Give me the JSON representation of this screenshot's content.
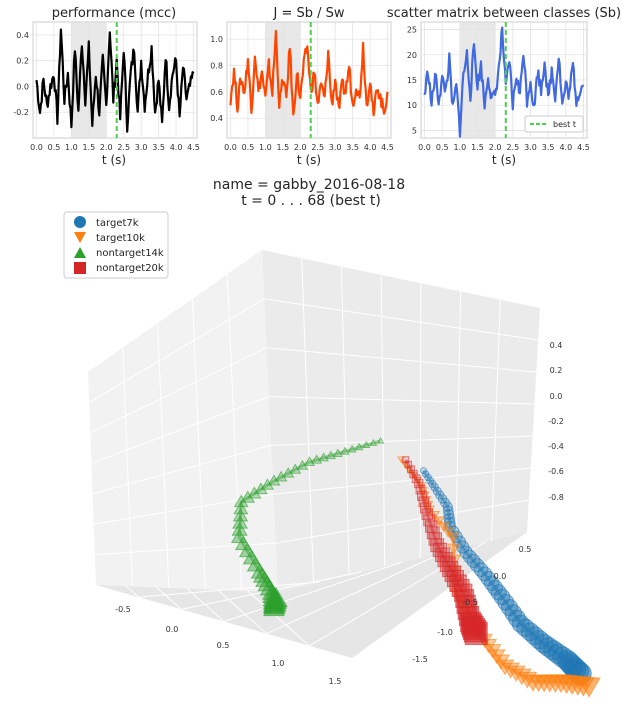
{
  "header": {
    "line1": "name = gabby_2016-08-18",
    "line2": "t = 0 . . .  68 (best t)"
  },
  "colors": {
    "perf": "#000000",
    "ratio": "#ff4500",
    "scatter": "#4169e1",
    "best_t": "#4cd14c",
    "shade": "#d9d9d9",
    "target7k": "#1f77b4",
    "target10k": "#ff7f0e",
    "nontarget14k": "#2ca02c",
    "nontarget20k": "#d62728"
  },
  "chart_data": [
    {
      "type": "line",
      "title": "performance (mcc)",
      "xlabel": "t (s)",
      "xlim": [
        -0.1,
        4.6
      ],
      "ylim": [
        -0.4,
        0.5
      ],
      "xticks": [
        "0.0",
        "0.5",
        "1.0",
        "1.5",
        "2.0",
        "2.5",
        "3.0",
        "3.5",
        "4.0",
        "4.5"
      ],
      "yticks": [
        "-0.2",
        "0.0",
        "0.2",
        "0.4"
      ],
      "shade_x": [
        1.0,
        2.0
      ],
      "best_t": 2.3,
      "base": 0.0,
      "amp": 0.2,
      "seed": 3,
      "x": [
        0,
        0.1,
        0.2,
        0.3,
        0.4,
        0.5,
        0.6,
        0.7,
        0.8,
        0.9,
        1.0,
        1.1,
        1.2,
        1.3,
        1.4,
        1.5,
        1.6,
        1.7,
        1.8,
        1.9,
        2.0,
        2.1,
        2.2,
        2.3,
        2.4,
        2.5,
        2.6,
        2.7,
        2.8,
        2.9,
        3.0,
        3.1,
        3.2,
        3.3,
        3.4,
        3.5,
        3.6,
        3.7,
        3.8,
        3.9,
        4.0,
        4.1,
        4.2,
        4.3,
        4.4,
        4.5
      ],
      "y": [
        0.05,
        -0.2,
        0.05,
        -0.15,
        0.0,
        0.1,
        -0.25,
        0.45,
        -0.1,
        0.1,
        -0.3,
        0.3,
        -0.2,
        0.35,
        -0.1,
        0.3,
        -0.3,
        0.1,
        -0.2,
        0.2,
        -0.15,
        0.45,
        -0.1,
        0.2,
        -0.25,
        0.3,
        -0.3,
        0.1,
        0.3,
        -0.2,
        0.2,
        -0.15,
        0.1,
        0.3,
        -0.2,
        0.05,
        -0.3,
        0.25,
        -0.15,
        0.1,
        0.2,
        -0.25,
        0.15,
        -0.1,
        0.0,
        0.1
      ]
    },
    {
      "type": "line",
      "title": "J = Sb / Sw",
      "xlabel": "t (s)",
      "xlim": [
        -0.1,
        4.6
      ],
      "ylim": [
        0.25,
        1.13
      ],
      "xticks": [
        "0.0",
        "0.5",
        "1.0",
        "1.5",
        "2.0",
        "2.5",
        "3.0",
        "3.5",
        "4.0",
        "4.5"
      ],
      "yticks": [
        "0.4",
        "0.6",
        "0.8",
        "1.0"
      ],
      "shade_x": [
        1.0,
        2.0
      ],
      "best_t": 2.3,
      "x": [
        0,
        0.1,
        0.2,
        0.3,
        0.4,
        0.5,
        0.6,
        0.7,
        0.8,
        0.9,
        1.0,
        1.1,
        1.2,
        1.3,
        1.4,
        1.5,
        1.6,
        1.7,
        1.8,
        1.9,
        2.0,
        2.1,
        2.2,
        2.3,
        2.4,
        2.5,
        2.6,
        2.7,
        2.8,
        2.9,
        3.0,
        3.1,
        3.2,
        3.3,
        3.4,
        3.5,
        3.6,
        3.7,
        3.8,
        3.9,
        4.0,
        4.1,
        4.2,
        4.3,
        4.4,
        4.5
      ],
      "y": [
        0.55,
        0.75,
        0.5,
        0.7,
        0.6,
        0.85,
        0.45,
        0.9,
        0.6,
        0.75,
        0.55,
        0.8,
        0.6,
        1.05,
        0.5,
        0.7,
        0.55,
        0.95,
        0.4,
        0.75,
        0.55,
        0.8,
        0.95,
        0.6,
        0.75,
        0.5,
        0.65,
        0.55,
        0.9,
        0.5,
        0.7,
        0.45,
        0.65,
        0.6,
        0.8,
        0.5,
        0.65,
        0.55,
        0.95,
        0.5,
        0.7,
        0.4,
        0.65,
        0.55,
        0.45,
        0.6
      ]
    },
    {
      "type": "line",
      "title": "scatter matrix between classes (Sb)",
      "xlabel": "t (s)",
      "xlim": [
        -0.1,
        4.6
      ],
      "ylim": [
        3.5,
        26.5
      ],
      "xticks": [
        "0.0",
        "0.5",
        "1.0",
        "1.5",
        "2.0",
        "2.5",
        "3.0",
        "3.5",
        "4.0",
        "4.5"
      ],
      "yticks": [
        "5",
        "10",
        "15",
        "20",
        "25"
      ],
      "shade_x": [
        1.0,
        2.0
      ],
      "best_t": 2.3,
      "legend": [
        "best t"
      ],
      "legend_loc": "lower right",
      "x": [
        0,
        0.1,
        0.2,
        0.3,
        0.4,
        0.5,
        0.6,
        0.7,
        0.8,
        0.9,
        1.0,
        1.1,
        1.2,
        1.3,
        1.4,
        1.5,
        1.6,
        1.7,
        1.8,
        1.9,
        2.0,
        2.1,
        2.2,
        2.3,
        2.4,
        2.5,
        2.6,
        2.7,
        2.8,
        2.9,
        3.0,
        3.1,
        3.2,
        3.3,
        3.4,
        3.5,
        3.6,
        3.7,
        3.8,
        3.9,
        4.0,
        4.1,
        4.2,
        4.3,
        4.4,
        4.5
      ],
      "y": [
        12,
        17,
        10,
        16,
        11,
        15,
        13,
        19,
        9,
        14,
        5,
        16,
        20,
        12,
        22,
        14,
        18,
        10,
        16,
        11,
        12,
        17,
        25,
        13,
        19,
        10,
        16,
        12,
        21,
        11,
        15,
        9,
        17,
        13,
        19,
        11,
        17,
        12,
        20,
        10,
        14,
        12,
        18,
        11,
        13,
        14
      ]
    },
    {
      "type": "scatter",
      "subtype": "3d-trajectory",
      "legend": [
        "target7k",
        "target10k",
        "nontarget14k",
        "nontarget20k"
      ],
      "legend_loc": "upper left",
      "xticks": [
        "-0.5",
        "0.0",
        "0.5",
        "1.0",
        "1.5"
      ],
      "yticks": [
        "-1.5",
        "-1.0",
        "-0.5",
        "0.0",
        "0.5"
      ],
      "zticks": [
        "-0.8",
        "-0.6",
        "-0.4",
        "-0.2",
        "0.0",
        "0.2",
        "0.4"
      ],
      "series": [
        {
          "name": "target7k",
          "marker": "circle",
          "points": [
            [
              0.55,
              -0.2,
              0.28
            ],
            [
              0.58,
              -0.32,
              0.22
            ],
            [
              0.62,
              -0.45,
              0.15
            ],
            [
              0.6,
              -0.55,
              0.05
            ],
            [
              0.65,
              -0.7,
              -0.05
            ],
            [
              0.72,
              -0.85,
              -0.12
            ],
            [
              0.78,
              -1.0,
              -0.2
            ],
            [
              0.85,
              -1.15,
              -0.3
            ],
            [
              0.95,
              -1.3,
              -0.35
            ],
            [
              1.05,
              -1.45,
              -0.38
            ],
            [
              1.1,
              -1.55,
              -0.42
            ]
          ]
        },
        {
          "name": "target10k",
          "marker": "triangle-down",
          "points": [
            [
              0.4,
              -0.2,
              0.3
            ],
            [
              0.5,
              -0.3,
              0.2
            ],
            [
              0.48,
              -0.5,
              0.1
            ],
            [
              0.6,
              -0.6,
              0.0
            ],
            [
              0.55,
              -0.8,
              -0.3
            ],
            [
              0.7,
              -0.9,
              -0.5
            ],
            [
              0.8,
              -1.0,
              -0.6
            ],
            [
              0.95,
              -1.1,
              -0.62
            ],
            [
              1.1,
              -1.2,
              -0.55
            ],
            [
              1.25,
              -1.3,
              -0.5
            ]
          ]
        },
        {
          "name": "nontarget14k",
          "marker": "triangle-up",
          "points": [
            [
              0.3,
              -0.1,
              0.35
            ],
            [
              0.1,
              0.0,
              0.2
            ],
            [
              -0.1,
              0.1,
              0.05
            ],
            [
              -0.3,
              0.2,
              -0.15
            ],
            [
              -0.5,
              0.25,
              -0.35
            ],
            [
              -0.55,
              0.15,
              -0.55
            ],
            [
              -0.45,
              0.05,
              -0.7
            ],
            [
              -0.35,
              0.1,
              -0.8
            ],
            [
              -0.3,
              0.2,
              -0.9
            ],
            [
              -0.25,
              0.3,
              -0.85
            ]
          ]
        },
        {
          "name": "nontarget20k",
          "marker": "square",
          "points": [
            [
              0.45,
              -0.15,
              0.3
            ],
            [
              0.5,
              -0.25,
              0.2
            ],
            [
              0.52,
              -0.35,
              0.05
            ],
            [
              0.55,
              -0.45,
              -0.1
            ],
            [
              0.6,
              -0.55,
              -0.2
            ],
            [
              0.65,
              -0.65,
              -0.3
            ],
            [
              0.68,
              -0.7,
              -0.45
            ],
            [
              0.7,
              -0.75,
              -0.5
            ]
          ]
        }
      ]
    }
  ]
}
